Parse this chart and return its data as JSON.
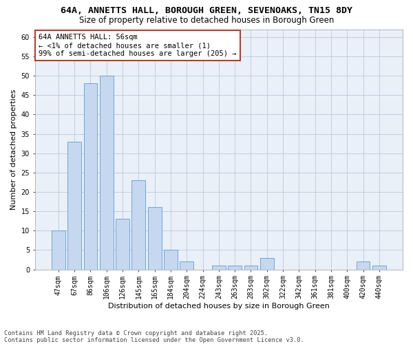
{
  "title1": "64A, ANNETTS HALL, BOROUGH GREEN, SEVENOAKS, TN15 8DY",
  "title2": "Size of property relative to detached houses in Borough Green",
  "xlabel": "Distribution of detached houses by size in Borough Green",
  "ylabel": "Number of detached properties",
  "categories": [
    "47sqm",
    "67sqm",
    "86sqm",
    "106sqm",
    "126sqm",
    "145sqm",
    "165sqm",
    "184sqm",
    "204sqm",
    "224sqm",
    "243sqm",
    "263sqm",
    "283sqm",
    "302sqm",
    "322sqm",
    "342sqm",
    "361sqm",
    "381sqm",
    "400sqm",
    "420sqm",
    "440sqm"
  ],
  "values": [
    10,
    33,
    48,
    50,
    13,
    23,
    16,
    5,
    2,
    0,
    1,
    1,
    1,
    3,
    0,
    0,
    0,
    0,
    0,
    2,
    1
  ],
  "bar_color": "#c5d8f0",
  "bar_edge_color": "#5b9bd5",
  "annotation_box_color": "#c0392b",
  "annotation_line1": "64A ANNETTS HALL: 56sqm",
  "annotation_line2": "← <1% of detached houses are smaller (1)",
  "annotation_line3": "99% of semi-detached houses are larger (205) →",
  "ylim": [
    0,
    62
  ],
  "yticks": [
    0,
    5,
    10,
    15,
    20,
    25,
    30,
    35,
    40,
    45,
    50,
    55,
    60
  ],
  "grid_color": "#b8c8e0",
  "bg_color": "#eaf0f8",
  "footer": "Contains HM Land Registry data © Crown copyright and database right 2025.\nContains public sector information licensed under the Open Government Licence v3.0.",
  "title1_fontsize": 9.5,
  "title2_fontsize": 8.5,
  "xlabel_fontsize": 8,
  "ylabel_fontsize": 8,
  "tick_fontsize": 7,
  "annotation_fontsize": 7.5,
  "footer_fontsize": 6.2
}
